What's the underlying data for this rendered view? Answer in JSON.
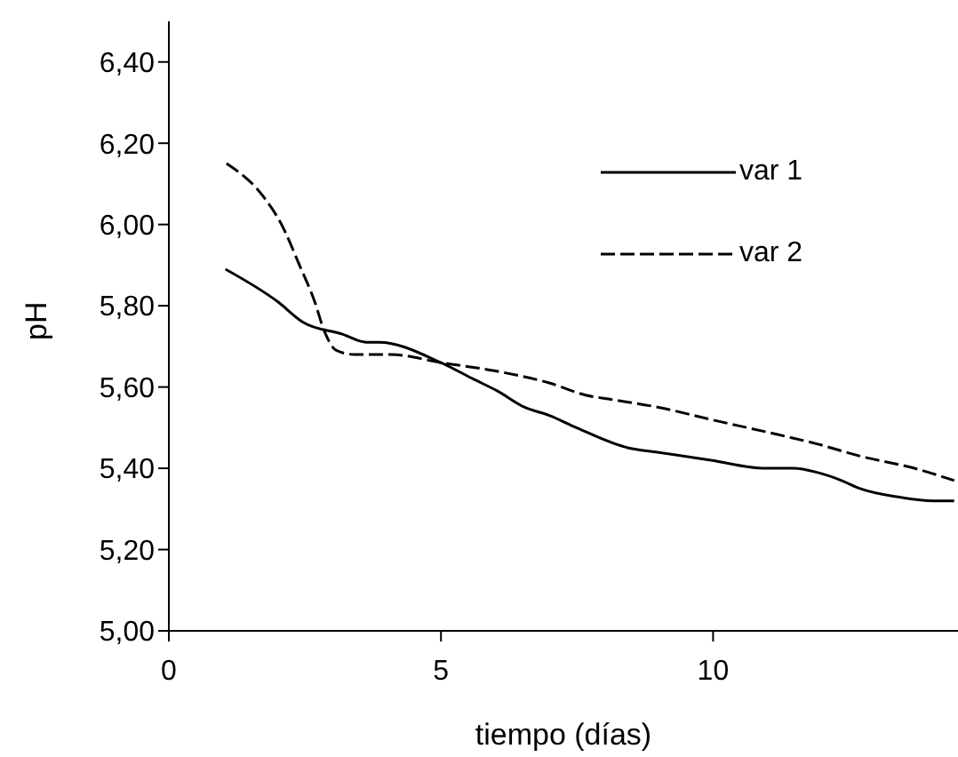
{
  "chart_data": {
    "type": "line",
    "xlabel": "tiempo (días)",
    "ylabel": "pH",
    "xlim": [
      0,
      14.5
    ],
    "xticks": [
      0,
      5,
      10
    ],
    "ylim": [
      5.0,
      6.5
    ],
    "yticks": [
      {
        "value": 5.0,
        "label": "5,00"
      },
      {
        "value": 5.2,
        "label": "5,20"
      },
      {
        "value": 5.4,
        "label": "5,40"
      },
      {
        "value": 5.6,
        "label": "5,60"
      },
      {
        "value": 5.8,
        "label": "5,80"
      },
      {
        "value": 6.0,
        "label": "6,00"
      },
      {
        "value": 6.2,
        "label": "6,20"
      },
      {
        "value": 6.4,
        "label": "6,40"
      }
    ],
    "legend": "top right",
    "series": [
      {
        "name": "var 1",
        "color": "#000000",
        "line_style": "solid",
        "x": [
          1.04,
          2.0,
          2.46,
          3.19,
          3.63,
          3.86,
          5,
          5.59,
          6.04,
          6.54,
          6.99,
          7.49,
          8.45,
          8.95,
          9.96,
          10.96,
          11.47,
          11.91,
          12.36,
          12.7,
          13.37,
          14.04,
          14.43
        ],
        "values": [
          5.89,
          5.81,
          5.76,
          5.73,
          5.71,
          5.71,
          5.66,
          5.62,
          5.59,
          5.55,
          5.53,
          5.5,
          5.45,
          5.44,
          5.42,
          5.4,
          5.4,
          5.39,
          5.37,
          5.35,
          5.33,
          5.32,
          5.32
        ]
      },
      {
        "name": "var 2",
        "color": "#000000",
        "line_style": "dashed",
        "x": [
          1.06,
          1.73,
          2.07,
          2.4,
          2.68,
          2.85,
          3.08,
          3.41,
          4.08,
          5,
          5.98,
          6.99,
          7.66,
          8.1,
          9,
          9.96,
          10.96,
          11.91,
          12.7,
          13.7,
          14.43
        ],
        "values": [
          6.15,
          6.07,
          6.0,
          5.9,
          5.81,
          5.74,
          5.69,
          5.68,
          5.68,
          5.66,
          5.64,
          5.61,
          5.58,
          5.57,
          5.55,
          5.52,
          5.49,
          5.46,
          5.43,
          5.4,
          5.37
        ]
      }
    ]
  }
}
